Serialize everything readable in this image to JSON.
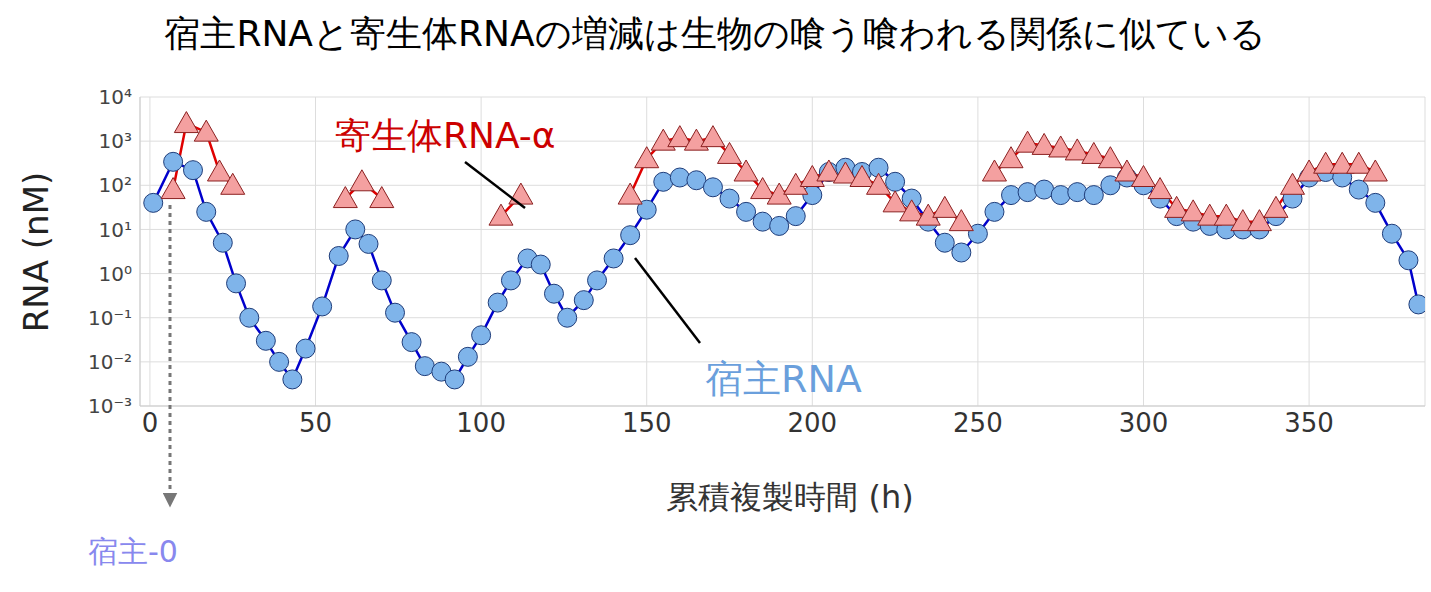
{
  "chart_data": {
    "type": "line",
    "title": "宿主RNAと寄生体RNAの増減は生物の喰う喰われる関係に似ている",
    "x_label": "累積複製時間 (h)",
    "y_label": "RNA (nM)",
    "annotations": [
      "宿主-0"
    ],
    "log": "y",
    "grid": true,
    "xlim": [
      -3,
      385
    ],
    "xticks": [
      0,
      50,
      100,
      150,
      200,
      250,
      300,
      350
    ],
    "ylim": [
      0.001,
      10000
    ],
    "yticks": [
      {
        "value": 0.001,
        "label": "10⁻³"
      },
      {
        "value": 0.01,
        "label": "10⁻²"
      },
      {
        "value": 0.1,
        "label": "10⁻¹"
      },
      {
        "value": 1,
        "label": "10⁰"
      },
      {
        "value": 10,
        "label": "10¹"
      },
      {
        "value": 100,
        "label": "10²"
      },
      {
        "value": 1000,
        "label": "10³"
      },
      {
        "value": 10000,
        "label": "10⁴"
      }
    ],
    "series": [
      {
        "name": "宿主RNA",
        "color": "#7fb4ea",
        "marker": "circle",
        "line_style": "solid",
        "x": [
          1,
          7,
          13,
          17,
          22,
          26,
          30,
          35,
          39,
          43,
          47,
          52,
          57,
          62,
          66,
          70,
          74,
          79,
          83,
          88,
          92,
          96,
          100,
          105,
          109,
          114,
          118,
          122,
          126,
          131,
          135,
          140,
          145,
          150,
          155,
          160,
          165,
          170,
          175,
          180,
          185,
          190,
          195,
          200,
          205,
          210,
          215,
          220,
          225,
          230,
          235,
          240,
          245,
          250,
          255,
          260,
          265,
          270,
          275,
          280,
          285,
          290,
          295,
          300,
          305,
          310,
          315,
          320,
          325,
          330,
          335,
          340,
          345,
          350,
          355,
          360,
          365,
          370,
          375,
          380,
          383
        ],
        "values": [
          40,
          340,
          220,
          25,
          5,
          0.6,
          0.1,
          0.03,
          0.01,
          0.004,
          0.02,
          0.18,
          2.5,
          10,
          4.7,
          0.7,
          0.13,
          0.028,
          0.008,
          0.006,
          0.004,
          0.013,
          0.04,
          0.22,
          0.7,
          2.2,
          1.6,
          0.35,
          0.1,
          0.25,
          0.7,
          2.2,
          7.4,
          28,
          120,
          150,
          130,
          90,
          50,
          25,
          15,
          12,
          20,
          60,
          200,
          250,
          200,
          250,
          120,
          50,
          15,
          5,
          3,
          8,
          25,
          60,
          70,
          80,
          60,
          70,
          60,
          100,
          150,
          100,
          50,
          20,
          15,
          12,
          10,
          10,
          10,
          20,
          50,
          150,
          200,
          150,
          80,
          40,
          8,
          2,
          0.2
        ]
      },
      {
        "name": "寄生体RNA-α",
        "color": "#f4a0a0",
        "marker": "triangle",
        "line_style": "solid",
        "x": [
          7,
          11,
          17,
          21,
          25,
          40,
          59,
          64,
          70,
          90,
          106,
          112,
          130,
          145,
          150,
          155,
          160,
          165,
          170,
          175,
          180,
          185,
          190,
          195,
          200,
          205,
          210,
          215,
          220,
          225,
          230,
          235,
          240,
          245,
          250,
          255,
          260,
          265,
          270,
          275,
          280,
          285,
          290,
          295,
          300,
          305,
          310,
          315,
          320,
          325,
          330,
          335,
          340,
          345,
          350,
          355,
          360,
          365,
          370
        ],
        "values": [
          80,
          2500,
          1600,
          200,
          100,
          null,
          50,
          120,
          50,
          null,
          20,
          60,
          null,
          60,
          400,
          1000,
          1200,
          1000,
          1200,
          500,
          200,
          80,
          60,
          100,
          150,
          200,
          180,
          150,
          100,
          40,
          25,
          20,
          30,
          15,
          null,
          200,
          400,
          900,
          800,
          700,
          600,
          500,
          400,
          200,
          150,
          80,
          30,
          25,
          20,
          20,
          15,
          15,
          30,
          100,
          200,
          300,
          300,
          300,
          200
        ]
      }
    ]
  }
}
